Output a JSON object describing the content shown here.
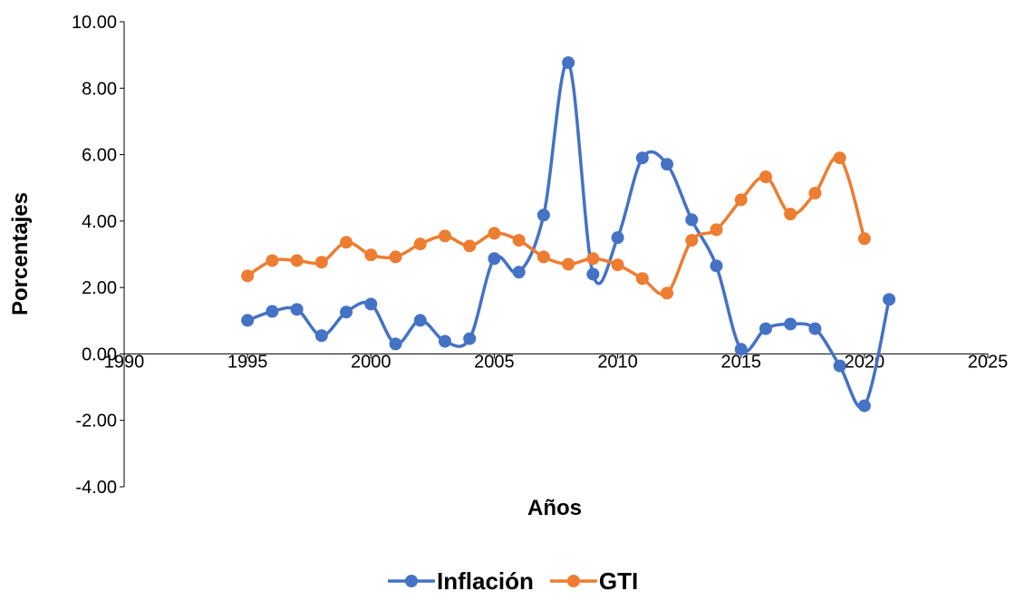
{
  "chart_data": {
    "type": "line",
    "x_label": "Años",
    "y_label": "Porcentajes",
    "x": [
      1995,
      1996,
      1997,
      1998,
      1999,
      2000,
      2001,
      2002,
      2003,
      2004,
      2005,
      2006,
      2007,
      2008,
      2009,
      2010,
      2011,
      2012,
      2013,
      2014,
      2015,
      2016,
      2017,
      2018,
      2019,
      2020,
      2021
    ],
    "series": [
      {
        "name": "Inflación",
        "color": "#4472c4",
        "values": [
          1.01,
          1.28,
          1.34,
          0.55,
          1.26,
          1.5,
          0.3,
          1.01,
          0.38,
          0.46,
          2.87,
          2.46,
          4.18,
          8.77,
          2.4,
          3.5,
          5.9,
          5.71,
          4.04,
          2.65,
          0.14,
          0.76,
          0.9,
          0.76,
          -0.36,
          -1.56,
          1.64
        ]
      },
      {
        "name": "GTI",
        "color": "#ed7d31",
        "values": [
          2.35,
          2.81,
          2.81,
          2.76,
          3.36,
          2.98,
          2.92,
          3.31,
          3.55,
          3.25,
          3.63,
          3.42,
          2.92,
          2.7,
          2.87,
          2.68,
          2.27,
          1.83,
          3.42,
          3.74,
          4.64,
          5.33,
          4.21,
          4.84,
          5.9,
          3.47,
          null
        ]
      }
    ],
    "xlim": [
      1990,
      2025
    ],
    "xticks": [
      1990,
      1995,
      2000,
      2005,
      2010,
      2015,
      2020,
      2025
    ],
    "ylim": [
      -4,
      10
    ],
    "yticks": [
      {
        "value": -4,
        "label": "-4.00"
      },
      {
        "value": -2,
        "label": "-2.00"
      },
      {
        "value": 0,
        "label": "0.00"
      },
      {
        "value": 2,
        "label": "2.00"
      },
      {
        "value": 4,
        "label": "4.00"
      },
      {
        "value": 6,
        "label": "6.00"
      },
      {
        "value": 8,
        "label": "8.00"
      },
      {
        "value": 10,
        "label": "10.00"
      }
    ],
    "smooth": true,
    "markers": true,
    "legend": "bottom"
  }
}
